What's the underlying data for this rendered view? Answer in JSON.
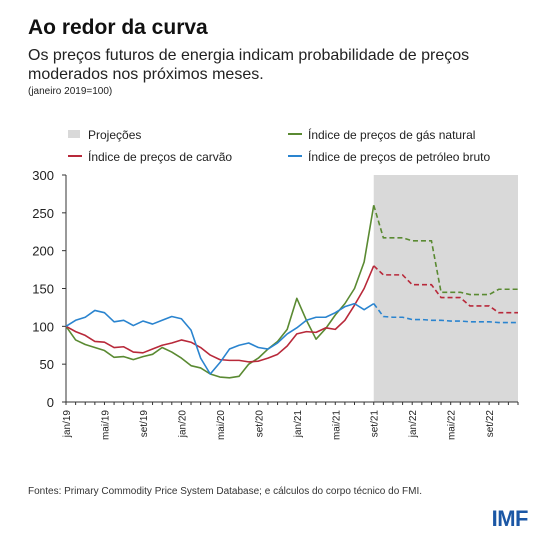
{
  "header": {
    "title": "Ao redor da curva",
    "subtitle": "Os preços futuros de energia indicam probabilidade de preços moderados nos próximos meses.",
    "unit_note": "(janeiro 2019=100)"
  },
  "footer": {
    "source": "Fontes: Primary Commodity Price System Database; e cálculos do corpo técnico do FMI.",
    "logo": "IMF"
  },
  "colors": {
    "gas": "#5a8a32",
    "coal": "#b8293a",
    "oil": "#2a84cf",
    "projection_shade": "#d9d9d9",
    "axis": "#333333"
  },
  "chart_data": {
    "type": "line",
    "xlabel": "",
    "ylabel": "",
    "ylim": [
      0,
      300
    ],
    "yticks": [
      0,
      50,
      100,
      150,
      200,
      250,
      300
    ],
    "grid": false,
    "legend_position": "top",
    "x": [
      "jan/19",
      "fev/19",
      "mar/19",
      "abr/19",
      "mai/19",
      "jun/19",
      "jul/19",
      "ago/19",
      "set/19",
      "out/19",
      "nov/19",
      "dez/19",
      "jan/20",
      "fev/20",
      "mar/20",
      "abr/20",
      "mai/20",
      "jun/20",
      "jul/20",
      "ago/20",
      "set/20",
      "out/20",
      "nov/20",
      "dez/20",
      "jan/21",
      "fev/21",
      "mar/21",
      "abr/21",
      "mai/21",
      "jun/21",
      "jul/21",
      "ago/21",
      "set/21",
      "out/21",
      "nov/21",
      "dez/21",
      "jan/22",
      "fev/22",
      "mar/22",
      "abr/22",
      "mai/22",
      "jun/22",
      "jul/22",
      "ago/22",
      "set/22",
      "out/22",
      "nov/22",
      "dez/22"
    ],
    "x_tick_labels": [
      {
        "x": "jan/19",
        "label": "jan/19"
      },
      {
        "x": "mai/19",
        "label": "mai/19"
      },
      {
        "x": "set/19",
        "label": "set/19"
      },
      {
        "x": "jan/20",
        "label": "jan/20"
      },
      {
        "x": "mai/20",
        "label": "mai/20"
      },
      {
        "x": "set/20",
        "label": "set/20"
      },
      {
        "x": "jan/21",
        "label": "jan/21"
      },
      {
        "x": "mai/21",
        "label": "mai/21"
      },
      {
        "x": "set/21",
        "label": "set/21"
      },
      {
        "x": "jan/22",
        "label": "jan/22"
      },
      {
        "x": "mai/22",
        "label": "mai/22"
      },
      {
        "x": "set/22",
        "label": "set/22"
      }
    ],
    "projection": {
      "start": "set/21",
      "end": "dez/22",
      "label": "Projeções"
    },
    "series": [
      {
        "name": "Índice de preços de gás natural",
        "key": "gas",
        "values": [
          100,
          82,
          76,
          72,
          68,
          59,
          60,
          56,
          60,
          63,
          72,
          66,
          58,
          48,
          45,
          37,
          33,
          32,
          34,
          50,
          58,
          70,
          80,
          96,
          137,
          108,
          83,
          97,
          115,
          130,
          150,
          185,
          260,
          217,
          217,
          217,
          213,
          213,
          213,
          145,
          145,
          145,
          142,
          142,
          142,
          149,
          149,
          149
        ],
        "projected_from_index": 32
      },
      {
        "name": "Índice de preços de carvão",
        "key": "coal",
        "values": [
          100,
          93,
          88,
          80,
          79,
          72,
          73,
          66,
          65,
          70,
          75,
          78,
          82,
          79,
          72,
          62,
          56,
          55,
          55,
          53,
          54,
          58,
          63,
          74,
          90,
          93,
          92,
          98,
          96,
          108,
          128,
          150,
          180,
          168,
          168,
          168,
          155,
          155,
          155,
          138,
          138,
          138,
          127,
          127,
          127,
          118,
          118,
          118
        ],
        "projected_from_index": 32
      },
      {
        "name": "Índice de preços de petróleo bruto",
        "key": "oil",
        "values": [
          100,
          108,
          112,
          121,
          118,
          106,
          108,
          101,
          107,
          103,
          108,
          113,
          110,
          95,
          58,
          37,
          52,
          70,
          75,
          78,
          72,
          70,
          78,
          90,
          98,
          108,
          112,
          112,
          118,
          126,
          130,
          122,
          130,
          113,
          112,
          112,
          109,
          109,
          108,
          108,
          107,
          107,
          106,
          106,
          106,
          105,
          105,
          105
        ],
        "projected_from_index": 32
      }
    ]
  }
}
